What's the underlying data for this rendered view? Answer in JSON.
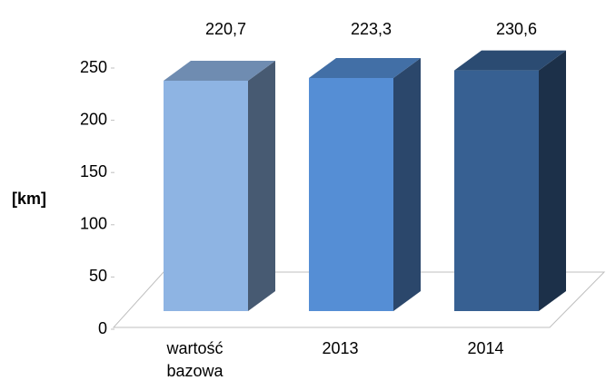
{
  "chart_data": {
    "type": "bar3d",
    "y_label": "[km]",
    "categories": [
      "wartość bazowa",
      "2013",
      "2014"
    ],
    "values": [
      220.7,
      223.3,
      230.6
    ],
    "value_labels": [
      "220,7",
      "223,3",
      "230,6"
    ],
    "colors": [
      "#8eb4e3",
      "#558ed5",
      "#376092"
    ],
    "ylim": [
      0,
      250
    ],
    "yticks": [
      0,
      50,
      100,
      150,
      200,
      250
    ]
  }
}
